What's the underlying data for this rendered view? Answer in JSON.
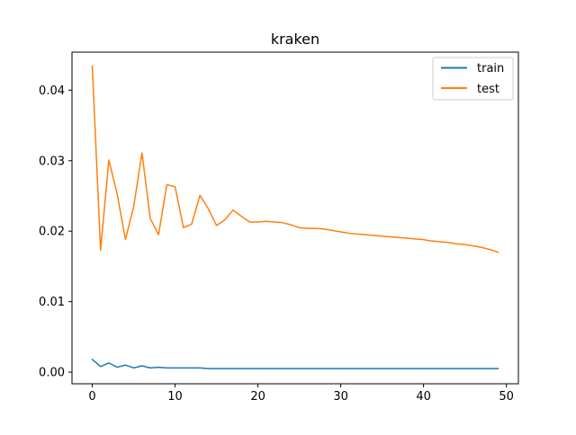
{
  "chart_data": {
    "type": "line",
    "title": "kraken",
    "xlabel": "",
    "ylabel": "",
    "xlim": [
      -2.45,
      51.45
    ],
    "ylim": [
      -0.00165,
      0.0454
    ],
    "xticks": [
      0,
      10,
      20,
      30,
      40,
      50
    ],
    "yticks": [
      0.0,
      0.01,
      0.02,
      0.03,
      0.04
    ],
    "xtick_labels": [
      "0",
      "10",
      "20",
      "30",
      "40",
      "50"
    ],
    "ytick_labels": [
      "0.00",
      "0.01",
      "0.02",
      "0.03",
      "0.04"
    ],
    "grid": false,
    "legend_position": "upper right",
    "x": [
      0,
      1,
      2,
      3,
      4,
      5,
      6,
      7,
      8,
      9,
      10,
      11,
      12,
      13,
      14,
      15,
      16,
      17,
      18,
      19,
      20,
      21,
      22,
      23,
      24,
      25,
      26,
      27,
      28,
      29,
      30,
      31,
      32,
      33,
      34,
      35,
      36,
      37,
      38,
      39,
      40,
      41,
      42,
      43,
      44,
      45,
      46,
      47,
      48,
      49
    ],
    "series": [
      {
        "name": "train",
        "color": "#1f77b4",
        "values": [
          0.0018,
          0.0008,
          0.0013,
          0.0007,
          0.001,
          0.0006,
          0.0009,
          0.0006,
          0.0007,
          0.0006,
          0.0006,
          0.0006,
          0.0006,
          0.0006,
          0.0005,
          0.0005,
          0.0005,
          0.0005,
          0.0005,
          0.0005,
          0.0005,
          0.0005,
          0.0005,
          0.0005,
          0.0005,
          0.0005,
          0.0005,
          0.0005,
          0.0005,
          0.0005,
          0.0005,
          0.0005,
          0.0005,
          0.0005,
          0.0005,
          0.0005,
          0.0005,
          0.0005,
          0.0005,
          0.0005,
          0.0005,
          0.0005,
          0.0005,
          0.0005,
          0.0005,
          0.0005,
          0.0005,
          0.0005,
          0.0005,
          0.0005
        ]
      },
      {
        "name": "test",
        "color": "#ff7f0e",
        "values": [
          0.0434,
          0.0173,
          0.0301,
          0.0253,
          0.0188,
          0.0235,
          0.0311,
          0.0218,
          0.0195,
          0.0266,
          0.0263,
          0.0205,
          0.021,
          0.0251,
          0.0232,
          0.0208,
          0.0216,
          0.023,
          0.0221,
          0.0213,
          0.0213,
          0.0214,
          0.0213,
          0.0212,
          0.0209,
          0.0205,
          0.0204,
          0.0204,
          0.0203,
          0.0201,
          0.0199,
          0.0197,
          0.0196,
          0.0195,
          0.0194,
          0.0193,
          0.0192,
          0.0191,
          0.019,
          0.0189,
          0.0188,
          0.0186,
          0.0185,
          0.0184,
          0.0182,
          0.0181,
          0.0179,
          0.0177,
          0.0174,
          0.017
        ]
      }
    ]
  }
}
